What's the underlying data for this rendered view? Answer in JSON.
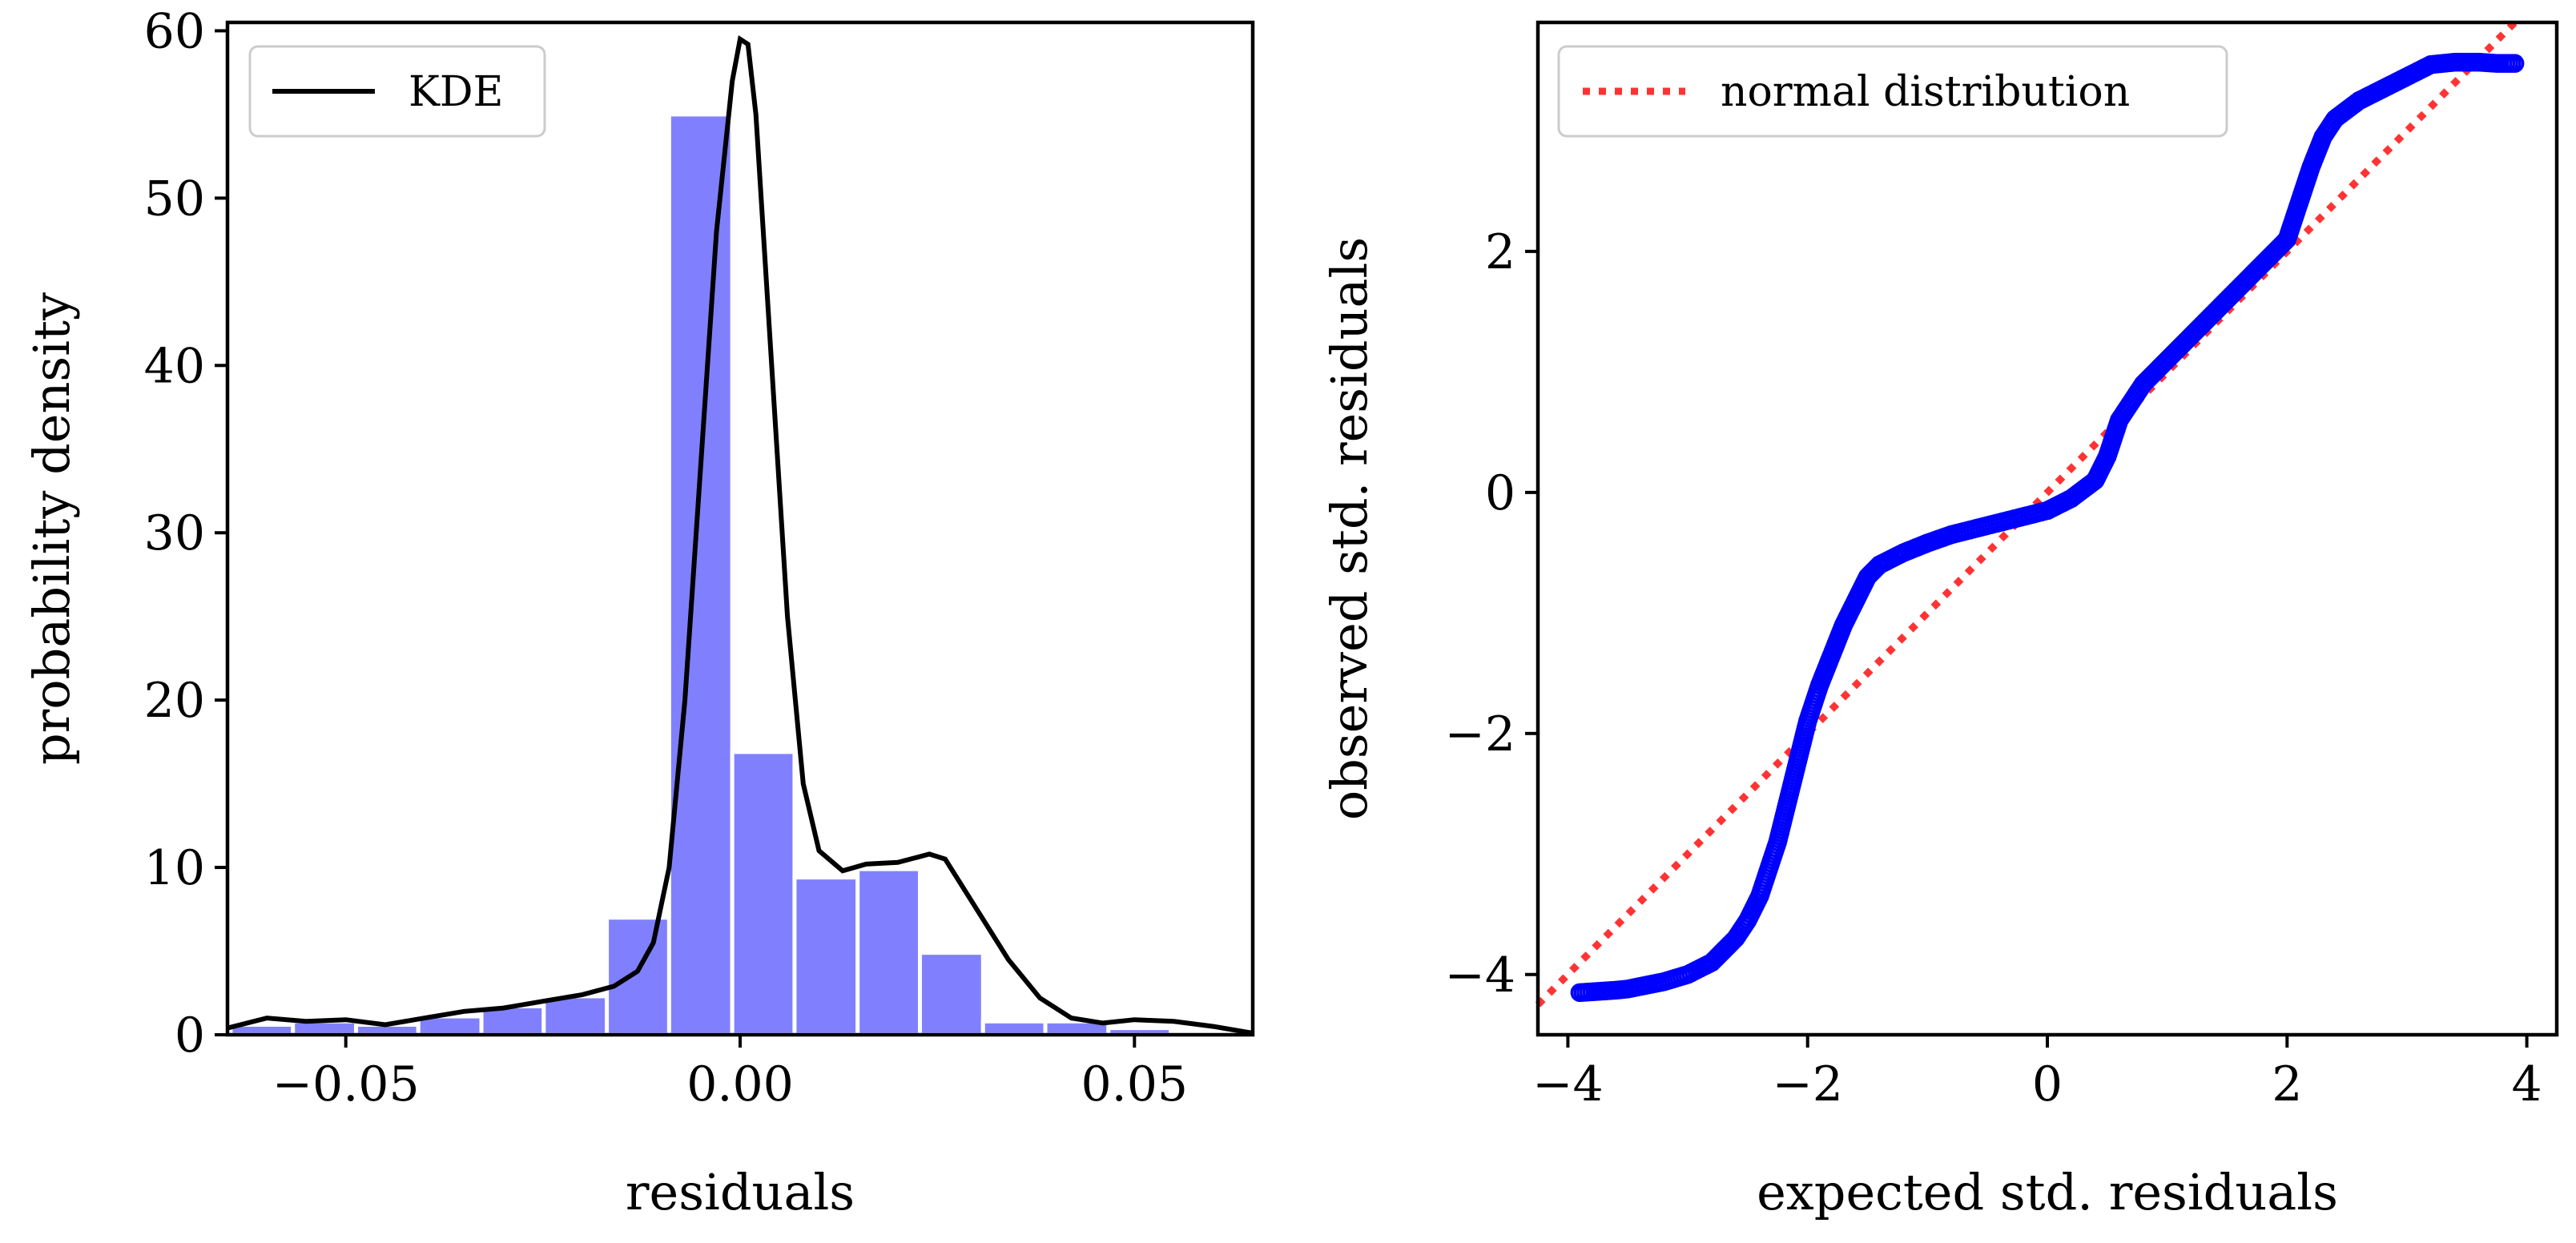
{
  "chart_data": [
    {
      "type": "bar",
      "subtype": "histogram-with-kde",
      "xlabel": "residuals",
      "ylabel": "probability density",
      "xlim": [
        -0.065,
        0.065
      ],
      "ylim": [
        0,
        60.5
      ],
      "xticks": [
        -0.05,
        0.0,
        0.05
      ],
      "xtick_labels": [
        "−0.05",
        "0.00",
        "0.05"
      ],
      "yticks": [
        0,
        10,
        20,
        30,
        40,
        50,
        60
      ],
      "ytick_labels": [
        "0",
        "10",
        "20",
        "30",
        "40",
        "50",
        "60"
      ],
      "grid": false,
      "legend": {
        "position": "top-left",
        "entries": [
          "KDE"
        ]
      },
      "colors": {
        "bars": "#8080ff",
        "kde": "#000000"
      },
      "bins": [
        {
          "x0": -0.0646,
          "x1": -0.0567,
          "value": 0.6
        },
        {
          "x0": -0.0567,
          "x1": -0.0487,
          "value": 0.8
        },
        {
          "x0": -0.0487,
          "x1": -0.0408,
          "value": 0.6
        },
        {
          "x0": -0.0408,
          "x1": -0.0328,
          "value": 1.1
        },
        {
          "x0": -0.0328,
          "x1": -0.0249,
          "value": 1.7
        },
        {
          "x0": -0.0249,
          "x1": -0.0169,
          "value": 2.3
        },
        {
          "x0": -0.0169,
          "x1": -0.009,
          "value": 7.0
        },
        {
          "x0": -0.009,
          "x1": -0.001,
          "value": 55.0
        },
        {
          "x0": -0.001,
          "x1": 0.0069,
          "value": 16.9
        },
        {
          "x0": 0.0069,
          "x1": 0.0149,
          "value": 9.4
        },
        {
          "x0": 0.0149,
          "x1": 0.0228,
          "value": 9.9
        },
        {
          "x0": 0.0228,
          "x1": 0.0308,
          "value": 4.9
        },
        {
          "x0": 0.0308,
          "x1": 0.0387,
          "value": 0.8
        },
        {
          "x0": 0.0387,
          "x1": 0.0467,
          "value": 0.8
        },
        {
          "x0": 0.0467,
          "x1": 0.0546,
          "value": 0.4
        }
      ],
      "kde": {
        "x": [
          -0.065,
          -0.06,
          -0.055,
          -0.05,
          -0.045,
          -0.04,
          -0.035,
          -0.03,
          -0.025,
          -0.02,
          -0.016,
          -0.013,
          -0.011,
          -0.009,
          -0.007,
          -0.005,
          -0.003,
          -0.001,
          0.0,
          0.001,
          0.002,
          0.004,
          0.006,
          0.008,
          0.01,
          0.013,
          0.016,
          0.02,
          0.024,
          0.026,
          0.03,
          0.034,
          0.038,
          0.042,
          0.046,
          0.05,
          0.055,
          0.06,
          0.065
        ],
        "y": [
          0.4,
          1.0,
          0.8,
          0.9,
          0.6,
          1.0,
          1.4,
          1.6,
          2.0,
          2.4,
          2.9,
          3.8,
          5.5,
          10.0,
          20.0,
          34.0,
          48.0,
          57.0,
          59.5,
          59.2,
          55.0,
          40.0,
          25.0,
          15.0,
          11.0,
          9.8,
          10.2,
          10.3,
          10.8,
          10.5,
          7.5,
          4.5,
          2.2,
          1.0,
          0.7,
          0.9,
          0.8,
          0.5,
          0.1
        ]
      }
    },
    {
      "type": "scatter",
      "subtype": "qq-plot",
      "xlabel": "expected std. residuals",
      "ylabel": "observed std. residuals",
      "xlim": [
        -4.25,
        4.25
      ],
      "ylim": [
        -4.5,
        3.9
      ],
      "xticks": [
        -4,
        -2,
        0,
        2,
        4
      ],
      "xtick_labels": [
        "−4",
        "−2",
        "0",
        "2",
        "4"
      ],
      "yticks": [
        -4,
        -2,
        0,
        2
      ],
      "ytick_labels": [
        "−4",
        "−2",
        "0",
        "2"
      ],
      "grid": false,
      "legend": {
        "position": "top-left",
        "entries": [
          "normal distribution"
        ]
      },
      "colors": {
        "points": "#0000ff",
        "reference": "#ff3333"
      },
      "reference_line": {
        "slope": 1,
        "intercept": 0
      },
      "qq_points": {
        "x": [
          -3.9,
          -3.75,
          -3.6,
          -3.5,
          -3.4,
          -3.3,
          -3.2,
          -3.1,
          -3.0,
          -2.9,
          -2.8,
          -2.7,
          -2.6,
          -2.5,
          -2.45,
          -2.4,
          -2.35,
          -2.3,
          -2.25,
          -2.2,
          -2.15,
          -2.1,
          -2.05,
          -2.0,
          -1.95,
          -1.9,
          -1.8,
          -1.7,
          -1.6,
          -1.5,
          -1.4,
          -1.3,
          -1.2,
          -1.0,
          -0.8,
          -0.6,
          -0.4,
          -0.2,
          0.0,
          0.2,
          0.4,
          0.5,
          0.6,
          0.7,
          0.8,
          1.0,
          1.2,
          1.4,
          1.6,
          1.8,
          2.0,
          2.1,
          2.2,
          2.3,
          2.4,
          2.6,
          2.8,
          3.0,
          3.2,
          3.3,
          3.4,
          3.5,
          3.6,
          3.75,
          3.9
        ],
        "y": [
          -4.15,
          -4.14,
          -4.13,
          -4.12,
          -4.1,
          -4.08,
          -4.06,
          -4.03,
          -4.0,
          -3.95,
          -3.9,
          -3.8,
          -3.7,
          -3.55,
          -3.45,
          -3.35,
          -3.2,
          -3.05,
          -2.9,
          -2.7,
          -2.5,
          -2.3,
          -2.1,
          -1.9,
          -1.75,
          -1.6,
          -1.35,
          -1.1,
          -0.9,
          -0.7,
          -0.6,
          -0.55,
          -0.5,
          -0.42,
          -0.35,
          -0.3,
          -0.25,
          -0.2,
          -0.15,
          -0.05,
          0.1,
          0.3,
          0.6,
          0.75,
          0.9,
          1.1,
          1.3,
          1.5,
          1.7,
          1.9,
          2.1,
          2.4,
          2.7,
          2.95,
          3.1,
          3.25,
          3.35,
          3.45,
          3.55,
          3.56,
          3.57,
          3.57,
          3.57,
          3.56,
          3.56
        ]
      }
    }
  ]
}
